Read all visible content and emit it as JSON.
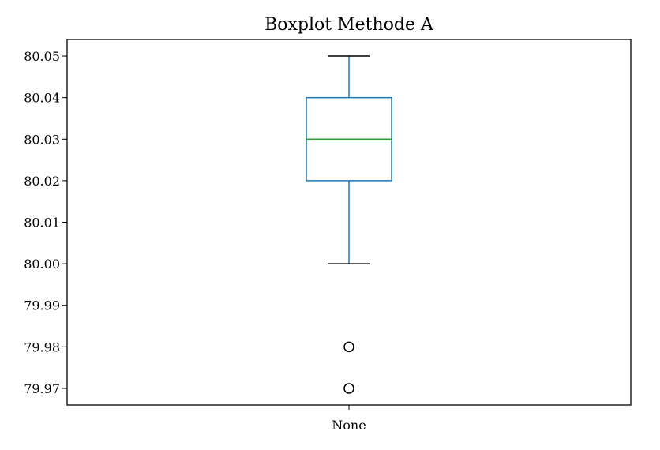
{
  "chart_data": {
    "type": "boxplot",
    "title": "Boxplot Methode A",
    "xlabel": "",
    "ylabel": "",
    "categories": [
      "None"
    ],
    "ylim": [
      79.966,
      80.054
    ],
    "yticks": [
      80.05,
      80.04,
      80.03,
      80.02,
      80.01,
      80.0,
      79.99,
      79.98,
      79.97
    ],
    "ytick_labels": [
      "80.05",
      "80.04",
      "80.03",
      "80.02",
      "80.01",
      "80.00",
      "79.99",
      "79.98",
      "79.97"
    ],
    "boxes": [
      {
        "category": "None",
        "whisker_low": 80.0,
        "q1": 80.02,
        "median": 80.03,
        "q3": 80.04,
        "whisker_high": 80.05,
        "outliers": [
          79.98,
          79.97
        ]
      }
    ],
    "colors": {
      "box": "#1f77b4",
      "median": "#2ca02c",
      "cap": "#000000",
      "outlier": "#000000",
      "axes": "#000000"
    }
  }
}
